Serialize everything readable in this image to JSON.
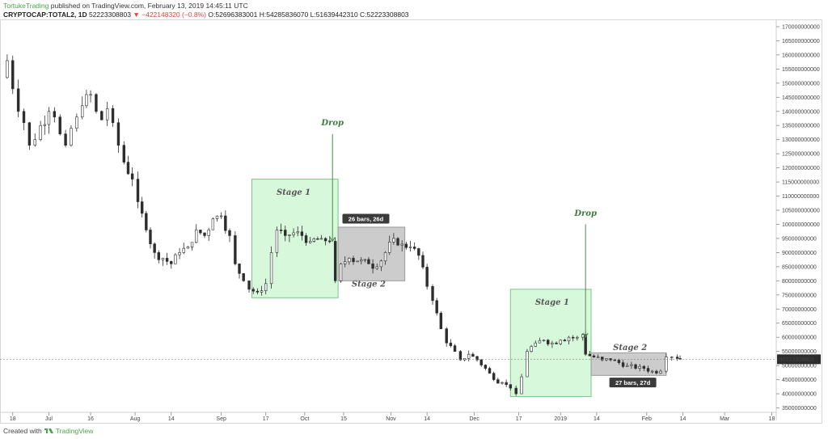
{
  "header": {
    "author": "TortukeTrading",
    "published_text": "published on TradingView.com, February 13, 2019 14:45:11 UTC",
    "symbol": "CRYPTOCAP:TOTAL2, 1D",
    "last_value": "52223308803",
    "change": "▼ −422148320 (−0.8%)",
    "ohlc": "O:52696383001 H:54285836070 L:51639442310 C:52223308803"
  },
  "footer": {
    "created_with": "Created with",
    "brand": "TradingView",
    "brand_icon": "tradingview-logo-icon"
  },
  "colors": {
    "up_candle": "#ffffff",
    "down_candle": "#2d2d2d",
    "stage1_fill": "#c9f5cf",
    "stage2_fill": "#bfbfbf",
    "drop_line": "#4a8a4a",
    "label_bg": "#3b3b3b",
    "price_label_bg": "#2d2d2d"
  },
  "chart_data": {
    "type": "candlestick",
    "title": "",
    "xlabel": "",
    "ylabel": "",
    "ylim": [
      34000000000,
      172000000000
    ],
    "y_ticks": [
      {
        "value": 35000000000,
        "label": "35000000000"
      },
      {
        "value": 40000000000,
        "label": "40000000000"
      },
      {
        "value": 45000000000,
        "label": "45000000000"
      },
      {
        "value": 50000000000,
        "label": "50000000000"
      },
      {
        "value": 55000000000,
        "label": "55000000000"
      },
      {
        "value": 60000000000,
        "label": "60000000000"
      },
      {
        "value": 65000000000,
        "label": "65000000000"
      },
      {
        "value": 70000000000,
        "label": "70000000000"
      },
      {
        "value": 75000000000,
        "label": "75000000000"
      },
      {
        "value": 80000000000,
        "label": "80000000000"
      },
      {
        "value": 85000000000,
        "label": "85000000000"
      },
      {
        "value": 90000000000,
        "label": "90000000000"
      },
      {
        "value": 95000000000,
        "label": "95000000000"
      },
      {
        "value": 100000000000,
        "label": "100000000000"
      },
      {
        "value": 105000000000,
        "label": "105000000000"
      },
      {
        "value": 110000000000,
        "label": "110000000000"
      },
      {
        "value": 115000000000,
        "label": "115000000000"
      },
      {
        "value": 120000000000,
        "label": "120000000000"
      },
      {
        "value": 125000000000,
        "label": "125000000000"
      },
      {
        "value": 130000000000,
        "label": "130000000000"
      },
      {
        "value": 135000000000,
        "label": "135000000000"
      },
      {
        "value": 140000000000,
        "label": "140000000000"
      },
      {
        "value": 145000000000,
        "label": "145000000000"
      },
      {
        "value": 150000000000,
        "label": "150000000000"
      },
      {
        "value": 155000000000,
        "label": "155000000000"
      },
      {
        "value": 160000000000,
        "label": "160000000000"
      },
      {
        "value": 165000000000,
        "label": "165000000000"
      },
      {
        "value": 170000000000,
        "label": "170000000000"
      }
    ],
    "x_ticks": [
      {
        "date": "2018-06-18",
        "label": "18"
      },
      {
        "date": "2018-07-01",
        "label": "Jul"
      },
      {
        "date": "2018-07-16",
        "label": "16"
      },
      {
        "date": "2018-08-01",
        "label": "Aug"
      },
      {
        "date": "2018-08-14",
        "label": "14"
      },
      {
        "date": "2018-09-01",
        "label": "Sep"
      },
      {
        "date": "2018-09-17",
        "label": "17"
      },
      {
        "date": "2018-10-01",
        "label": "Oct"
      },
      {
        "date": "2018-10-15",
        "label": "15"
      },
      {
        "date": "2018-11-01",
        "label": "Nov"
      },
      {
        "date": "2018-11-14",
        "label": "14"
      },
      {
        "date": "2018-12-01",
        "label": "Dec"
      },
      {
        "date": "2018-12-17",
        "label": "17"
      },
      {
        "date": "2019-01-01",
        "label": "2019"
      },
      {
        "date": "2019-01-14",
        "label": "14"
      },
      {
        "date": "2019-02-01",
        "label": "Feb"
      },
      {
        "date": "2019-02-14",
        "label": "14"
      },
      {
        "date": "2019-03-01",
        "label": "Mar"
      },
      {
        "date": "2019-03-18",
        "label": "18"
      }
    ],
    "xlim": [
      "2018-06-14",
      "2019-03-19"
    ],
    "series": [
      {
        "x": [
          "2018-06-14",
          "2018-06-16",
          "2018-06-18",
          "2018-06-20",
          "2018-06-22",
          "2018-06-24",
          "2018-06-26",
          "2018-06-28",
          "2018-07-01",
          "2018-07-03",
          "2018-07-05",
          "2018-07-07",
          "2018-07-09",
          "2018-07-11",
          "2018-07-13",
          "2018-07-16",
          "2018-07-18",
          "2018-07-20",
          "2018-07-22",
          "2018-07-24",
          "2018-07-26",
          "2018-07-28",
          "2018-07-31",
          "2018-08-02",
          "2018-08-05",
          "2018-08-08",
          "2018-08-11",
          "2018-08-14",
          "2018-08-17",
          "2018-08-20",
          "2018-08-23",
          "2018-08-26",
          "2018-08-29",
          "2018-09-01",
          "2018-09-04",
          "2018-09-06",
          "2018-09-09",
          "2018-09-11",
          "2018-09-14",
          "2018-09-17",
          "2018-09-19",
          "2018-09-21",
          "2018-09-24",
          "2018-09-27",
          "2018-09-30",
          "2018-10-03",
          "2018-10-07",
          "2018-10-10",
          "2018-10-12",
          "2018-10-14",
          "2018-10-17",
          "2018-10-20",
          "2018-10-24",
          "2018-10-27",
          "2018-10-30",
          "2018-11-02",
          "2018-11-05",
          "2018-11-08",
          "2018-11-11",
          "2018-11-14",
          "2018-11-16",
          "2018-11-19",
          "2018-11-21",
          "2018-11-24",
          "2018-11-26",
          "2018-11-29",
          "2018-12-02",
          "2018-12-05",
          "2018-12-08",
          "2018-12-11",
          "2018-12-14",
          "2018-12-16",
          "2018-12-18",
          "2018-12-20",
          "2018-12-23",
          "2018-12-26",
          "2018-12-29",
          "2019-01-01",
          "2019-01-04",
          "2019-01-07",
          "2019-01-09",
          "2019-01-10",
          "2019-01-13",
          "2019-01-16",
          "2019-01-19",
          "2019-01-22",
          "2019-01-25",
          "2019-01-28",
          "2019-01-31",
          "2019-02-03",
          "2019-02-06",
          "2019-02-08",
          "2019-02-10",
          "2019-02-12",
          "2019-02-13"
        ],
        "close": [
          152000000000,
          158000000000,
          148000000000,
          140000000000,
          136000000000,
          128000000000,
          130000000000,
          135000000000,
          140000000000,
          138000000000,
          132000000000,
          128000000000,
          134000000000,
          138000000000,
          142000000000,
          146000000000,
          140000000000,
          137000000000,
          141000000000,
          136000000000,
          128000000000,
          122000000000,
          116000000000,
          108000000000,
          98000000000,
          90000000000,
          88000000000,
          86000000000,
          90000000000,
          92000000000,
          98000000000,
          96000000000,
          102000000000,
          103000000000,
          96000000000,
          86000000000,
          80000000000,
          77000000000,
          76000000000,
          79000000000,
          90000000000,
          98000000000,
          96000000000,
          97000000000,
          96000000000,
          94000000000,
          95000000000,
          94000000000,
          80000000000,
          86000000000,
          88000000000,
          87000000000,
          86000000000,
          85000000000,
          90000000000,
          95000000000,
          93000000000,
          92000000000,
          89000000000,
          78000000000,
          73000000000,
          63000000000,
          58000000000,
          55000000000,
          52000000000,
          54000000000,
          52000000000,
          49000000000,
          45000000000,
          44000000000,
          42000000000,
          40000000000,
          46000000000,
          55000000000,
          58000000000,
          59000000000,
          58000000000,
          59000000000,
          60000000000,
          60000000000,
          61000000000,
          54000000000,
          53000000000,
          52000000000,
          52000000000,
          51000000000,
          50000000000,
          49000000000,
          49000000000,
          48000000000,
          48000000000,
          53000000000,
          53000000000,
          52500000000,
          52200000000
        ]
      }
    ],
    "annotations": [
      {
        "type": "rect",
        "name": "stage1-box-a",
        "x0": "2018-09-12",
        "x1": "2018-10-13",
        "y0": 74000000000,
        "y1": 116000000000,
        "text": "Stage 1",
        "text_pos": {
          "x": "2018-09-27",
          "y": 110500000000
        }
      },
      {
        "type": "rect",
        "name": "stage2-box-a",
        "x0": "2018-10-13",
        "x1": "2018-11-06",
        "y0": 80000000000,
        "y1": 99000000000,
        "text": "Stage 2",
        "text_pos": {
          "x": "2018-10-24",
          "y": 78000000000
        }
      },
      {
        "type": "label",
        "name": "bars-label-a",
        "x": "2018-10-23",
        "y": 102000000000,
        "text": "26 bars, 26d"
      },
      {
        "type": "drop",
        "name": "drop-a",
        "x": "2018-10-11",
        "y_top": 132000000000,
        "y_bottom": 94000000000,
        "text": "Drop",
        "text_pos": {
          "x": "2018-10-11",
          "y": 135000000000
        }
      },
      {
        "type": "rect",
        "name": "stage1-box-b",
        "x0": "2018-12-14",
        "x1": "2019-01-12",
        "y0": 39000000000,
        "y1": 77000000000,
        "text": "Stage 1",
        "text_pos": {
          "x": "2018-12-29",
          "y": 71500000000
        }
      },
      {
        "type": "rect",
        "name": "stage2-box-b",
        "x0": "2019-01-12",
        "x1": "2019-02-08",
        "y0": 46500000000,
        "y1": 54500000000,
        "text": "Stage 2",
        "text_pos": {
          "x": "2019-01-26",
          "y": 55500000000
        }
      },
      {
        "type": "label",
        "name": "bars-label-b",
        "x": "2019-01-27",
        "y": 44000000000,
        "text": "27 bars, 27d"
      },
      {
        "type": "drop",
        "name": "drop-b",
        "x": "2019-01-10",
        "y_top": 100000000000,
        "y_bottom": 60000000000,
        "text": "Drop",
        "text_pos": {
          "x": "2019-01-10",
          "y": 103000000000
        }
      }
    ],
    "last_price_line": 52223308803,
    "last_price_label": "52223308803",
    "grid": false
  }
}
